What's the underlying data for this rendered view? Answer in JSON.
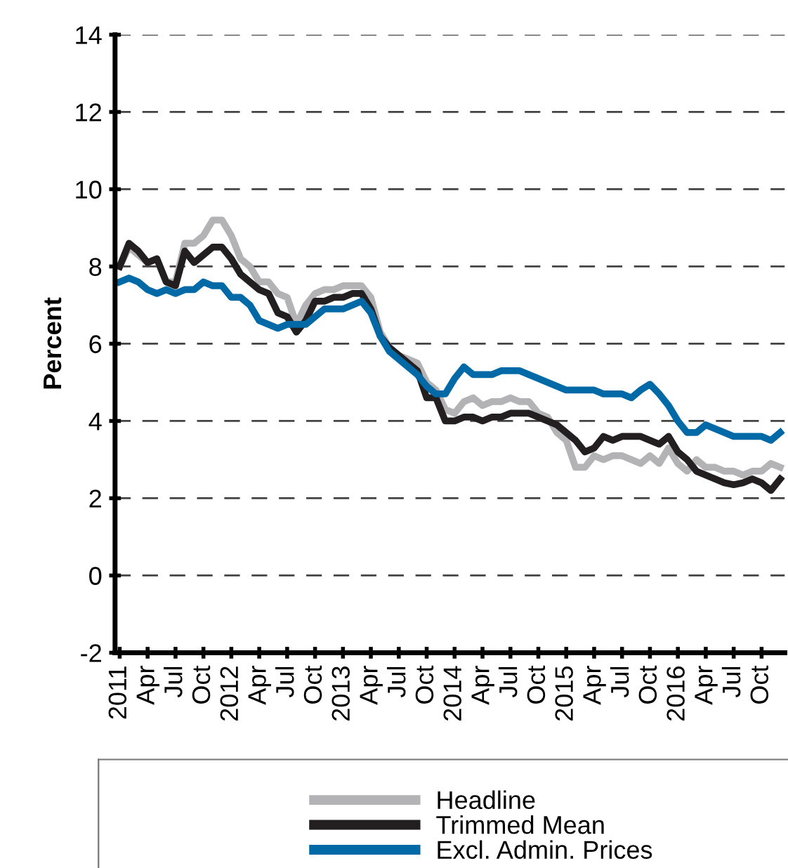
{
  "chart_data": {
    "type": "line",
    "ylabel": "Percent",
    "categories": [
      "2011",
      null,
      null,
      "Apr",
      null,
      null,
      "Jul",
      null,
      null,
      "Oct",
      null,
      null,
      "2012",
      null,
      null,
      "Apr",
      null,
      null,
      "Jul",
      null,
      null,
      "Oct",
      null,
      null,
      "2013",
      null,
      null,
      "Apr",
      null,
      null,
      "Jul",
      null,
      null,
      "Oct",
      null,
      null,
      "2014",
      null,
      null,
      "Apr",
      null,
      null,
      "Jul",
      null,
      null,
      "Oct",
      null,
      null,
      "2015",
      null,
      null,
      "Apr",
      null,
      null,
      "Jul",
      null,
      null,
      "Oct",
      null,
      null,
      "2016",
      null,
      null,
      "Apr",
      null,
      null,
      "Jul",
      null,
      null,
      "Oct",
      null,
      null
    ],
    "series": [
      {
        "name": "Headline",
        "color": "#b3b3b5",
        "values": [
          8.0,
          8.5,
          8.3,
          8.1,
          8.2,
          7.6,
          7.6,
          8.6,
          8.6,
          8.8,
          9.2,
          9.2,
          8.8,
          8.2,
          8.0,
          7.6,
          7.6,
          7.3,
          7.2,
          6.5,
          7.0,
          7.3,
          7.4,
          7.4,
          7.5,
          7.5,
          7.5,
          7.2,
          6.3,
          5.9,
          5.7,
          5.6,
          5.5,
          5.0,
          4.8,
          4.3,
          4.2,
          4.5,
          4.6,
          4.4,
          4.5,
          4.5,
          4.6,
          4.5,
          4.5,
          4.2,
          4.1,
          3.7,
          3.5,
          2.8,
          2.8,
          3.1,
          3.0,
          3.1,
          3.1,
          3.0,
          2.9,
          3.1,
          2.9,
          3.3,
          2.9,
          2.7,
          3.0,
          2.8,
          2.8,
          2.7,
          2.7,
          2.6,
          2.7,
          2.7,
          2.9,
          2.8
        ]
      },
      {
        "name": "Trimmed Mean",
        "color": "#231f20",
        "values": [
          8.0,
          8.6,
          8.4,
          8.1,
          8.2,
          7.6,
          7.5,
          8.4,
          8.1,
          8.3,
          8.5,
          8.5,
          8.2,
          7.8,
          7.6,
          7.4,
          7.3,
          6.8,
          6.7,
          6.3,
          6.6,
          7.1,
          7.1,
          7.2,
          7.2,
          7.3,
          7.3,
          6.9,
          6.2,
          5.9,
          5.7,
          5.5,
          5.3,
          4.6,
          4.6,
          4.0,
          4.0,
          4.1,
          4.1,
          4.0,
          4.1,
          4.1,
          4.2,
          4.2,
          4.2,
          4.1,
          4.0,
          3.9,
          3.7,
          3.5,
          3.2,
          3.3,
          3.6,
          3.5,
          3.6,
          3.6,
          3.6,
          3.5,
          3.4,
          3.6,
          3.2,
          3.0,
          2.7,
          2.6,
          2.5,
          2.4,
          2.35,
          2.4,
          2.5,
          2.4,
          2.2,
          2.5
        ]
      },
      {
        "name": "Excl. Admin. Prices",
        "color": "#0069a6",
        "values": [
          7.6,
          7.7,
          7.6,
          7.4,
          7.3,
          7.4,
          7.3,
          7.4,
          7.4,
          7.6,
          7.5,
          7.5,
          7.2,
          7.2,
          7.0,
          6.6,
          6.5,
          6.4,
          6.5,
          6.5,
          6.5,
          6.7,
          6.9,
          6.9,
          6.9,
          7.0,
          7.1,
          6.8,
          6.2,
          5.8,
          5.6,
          5.4,
          5.2,
          4.9,
          4.7,
          4.7,
          5.1,
          5.4,
          5.2,
          5.2,
          5.2,
          5.3,
          5.3,
          5.3,
          5.2,
          5.1,
          5.0,
          4.9,
          4.8,
          4.8,
          4.8,
          4.8,
          4.7,
          4.7,
          4.7,
          4.6,
          4.8,
          4.95,
          4.7,
          4.4,
          4.0,
          3.7,
          3.7,
          3.9,
          3.8,
          3.7,
          3.6,
          3.6,
          3.6,
          3.6,
          3.5,
          3.7
        ]
      }
    ],
    "ylim": [
      -2,
      14
    ],
    "yticks": [
      -2,
      0,
      2,
      4,
      6,
      8,
      10,
      12,
      14
    ],
    "grid": "y",
    "legend": "bottom",
    "line_style": "solid",
    "marker": "none"
  }
}
